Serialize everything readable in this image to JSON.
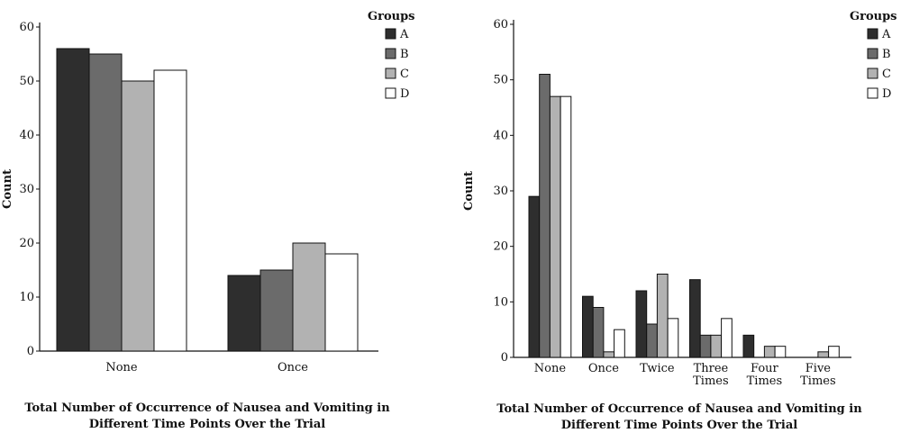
{
  "chart_data": [
    {
      "type": "bar",
      "categories": [
        "None",
        "Once"
      ],
      "series": [
        {
          "name": "A",
          "values": [
            56,
            14
          ]
        },
        {
          "name": "B",
          "values": [
            55,
            15
          ]
        },
        {
          "name": "C",
          "values": [
            50,
            20
          ]
        },
        {
          "name": "D",
          "values": [
            52,
            18
          ]
        }
      ],
      "ylabel": "Count",
      "xlabel_lines": [
        "Total Number of Occurrence of Nausea and Vomiting in",
        "Different Time Points Over the Trial"
      ],
      "ylim": [
        0,
        60
      ],
      "yticks": [
        0,
        10,
        20,
        30,
        40,
        50,
        60
      ],
      "legend_title": "Groups",
      "legend_position": "top-right",
      "grid": false
    },
    {
      "type": "bar",
      "categories": [
        "None",
        "Once",
        "Twice",
        "Three Times",
        "Four Times",
        "Five Times"
      ],
      "series": [
        {
          "name": "A",
          "values": [
            29,
            11,
            12,
            14,
            4,
            0
          ]
        },
        {
          "name": "B",
          "values": [
            51,
            9,
            6,
            4,
            0,
            0
          ]
        },
        {
          "name": "C",
          "values": [
            47,
            1,
            15,
            4,
            2,
            1
          ]
        },
        {
          "name": "D",
          "values": [
            47,
            5,
            7,
            7,
            2,
            2
          ]
        }
      ],
      "ylabel": "Count",
      "xlabel_lines": [
        "Total Number of Occurrence of Nausea and Vomiting in",
        "Different Time Points Over the Trial"
      ],
      "ylim": [
        0,
        60
      ],
      "yticks": [
        0,
        10,
        20,
        30,
        40,
        50,
        60
      ],
      "legend_title": "Groups",
      "legend_position": "top-right",
      "grid": false
    }
  ],
  "colors": {
    "A": "#2e2e2e",
    "B": "#6b6b6b",
    "C": "#b2b2b2",
    "D": "#ffffff",
    "stroke": "#111111"
  }
}
